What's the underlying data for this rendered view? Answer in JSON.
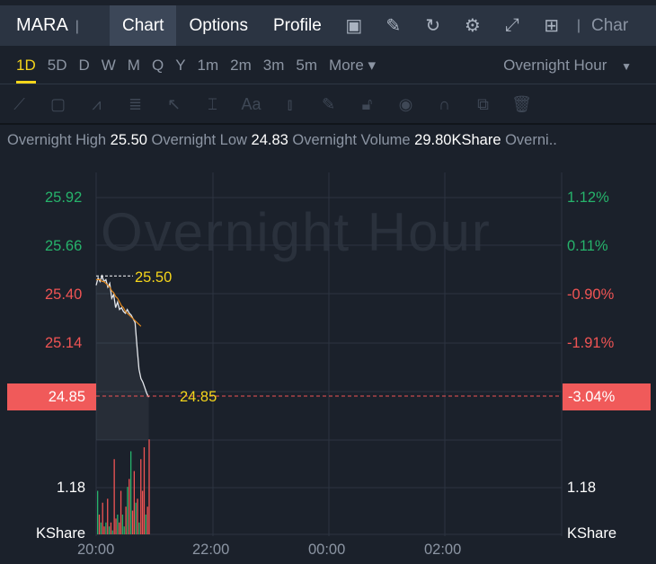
{
  "header": {
    "ticker": "MARA",
    "tabs": [
      "Chart",
      "Options",
      "Profile"
    ],
    "active_tab": "Chart",
    "icons": [
      "chart-screen-icon",
      "edit-icon",
      "refresh-icon",
      "settings-icon",
      "fullscreen-icon",
      "grid-layout-icon"
    ],
    "truncated": "Char"
  },
  "periods": {
    "items": [
      "1D",
      "5D",
      "D",
      "W",
      "M",
      "Q",
      "Y",
      "1m",
      "2m",
      "3m",
      "5m",
      "More ▾"
    ],
    "active": "1D",
    "session": "Overnight Hour"
  },
  "tools": [
    "trendline-icon",
    "rectangle-icon",
    "pattern-icon",
    "fib-icon",
    "arrow-icon",
    "range-icon",
    "text-icon",
    "candle-icon",
    "pencil-icon",
    "lock-icon",
    "eye-icon",
    "magnet-icon",
    "layers-icon",
    "trash-icon"
  ],
  "stats": {
    "high_label": "Overnight High",
    "high": "25.50",
    "low_label": "Overnight Low",
    "low": "24.83",
    "vol_label": "Overnight Volume",
    "vol": "29.80KShare",
    "more": "Overni.."
  },
  "colors": {
    "up": "#26b36b",
    "down": "#f05454",
    "highlight": "#f5d51b",
    "avg": "#e0871e"
  },
  "chart_data": {
    "type": "line",
    "watermark": "Overnight Hour",
    "x_ticks": [
      "20:00",
      "22:00",
      "00:00",
      "02:00"
    ],
    "y_ticks": [
      {
        "price": "25.92",
        "pct": "1.12%"
      },
      {
        "price": "25.66",
        "pct": "0.11%"
      },
      {
        "price": "25.40",
        "pct": "-0.90%"
      },
      {
        "price": "25.14",
        "pct": "-1.91%"
      }
    ],
    "current": {
      "price": "24.85",
      "pct": "-3.04%"
    },
    "high_marker": "25.50",
    "last_marker": "24.85",
    "price_minutes": [
      0,
      2,
      4,
      6,
      8,
      10,
      12,
      14,
      16,
      18,
      20,
      22,
      24,
      26,
      28,
      30,
      32,
      34,
      36,
      38,
      40,
      42,
      44,
      46,
      48,
      50,
      52,
      54
    ],
    "price": [
      25.45,
      25.49,
      25.47,
      25.5,
      25.47,
      25.48,
      25.44,
      25.46,
      25.38,
      25.4,
      25.33,
      25.36,
      25.32,
      25.33,
      25.31,
      25.3,
      25.32,
      25.3,
      25.29,
      25.27,
      25.25,
      25.12,
      25.0,
      24.95,
      24.93,
      24.9,
      24.87,
      24.85
    ],
    "avg": [
      25.48,
      25.48,
      25.48,
      25.47,
      25.47,
      25.46,
      25.45,
      25.44,
      25.42,
      25.41,
      25.39,
      25.38,
      25.36,
      25.34,
      25.33,
      25.31,
      25.3,
      25.29,
      25.28,
      25.27,
      25.26,
      25.25,
      25.24,
      25.23,
      25.22,
      25.22,
      25.21,
      25.21
    ],
    "volume_axis": {
      "tick": "1.18",
      "unit": "KShare"
    },
    "volume": [
      1.1,
      0.5,
      0.3,
      0.8,
      0.2,
      0.3,
      0.9,
      0.2,
      0.3,
      0.1,
      1.9,
      0.4,
      0.5,
      0.3,
      1.1,
      0.5,
      0.2,
      0.7,
      1.2,
      1.4,
      2.1,
      0.6,
      1.6,
      0.8,
      0.9,
      0.3,
      1.9,
      1.1,
      2.2,
      0.5,
      0.7,
      2.4
    ],
    "volume_up": [
      true,
      false,
      true,
      false,
      false,
      true,
      false,
      true,
      false,
      true,
      false,
      false,
      true,
      false,
      false,
      true,
      true,
      false,
      true,
      false,
      true,
      false,
      false,
      true,
      false,
      true,
      false,
      false,
      false,
      true,
      false,
      false
    ]
  }
}
